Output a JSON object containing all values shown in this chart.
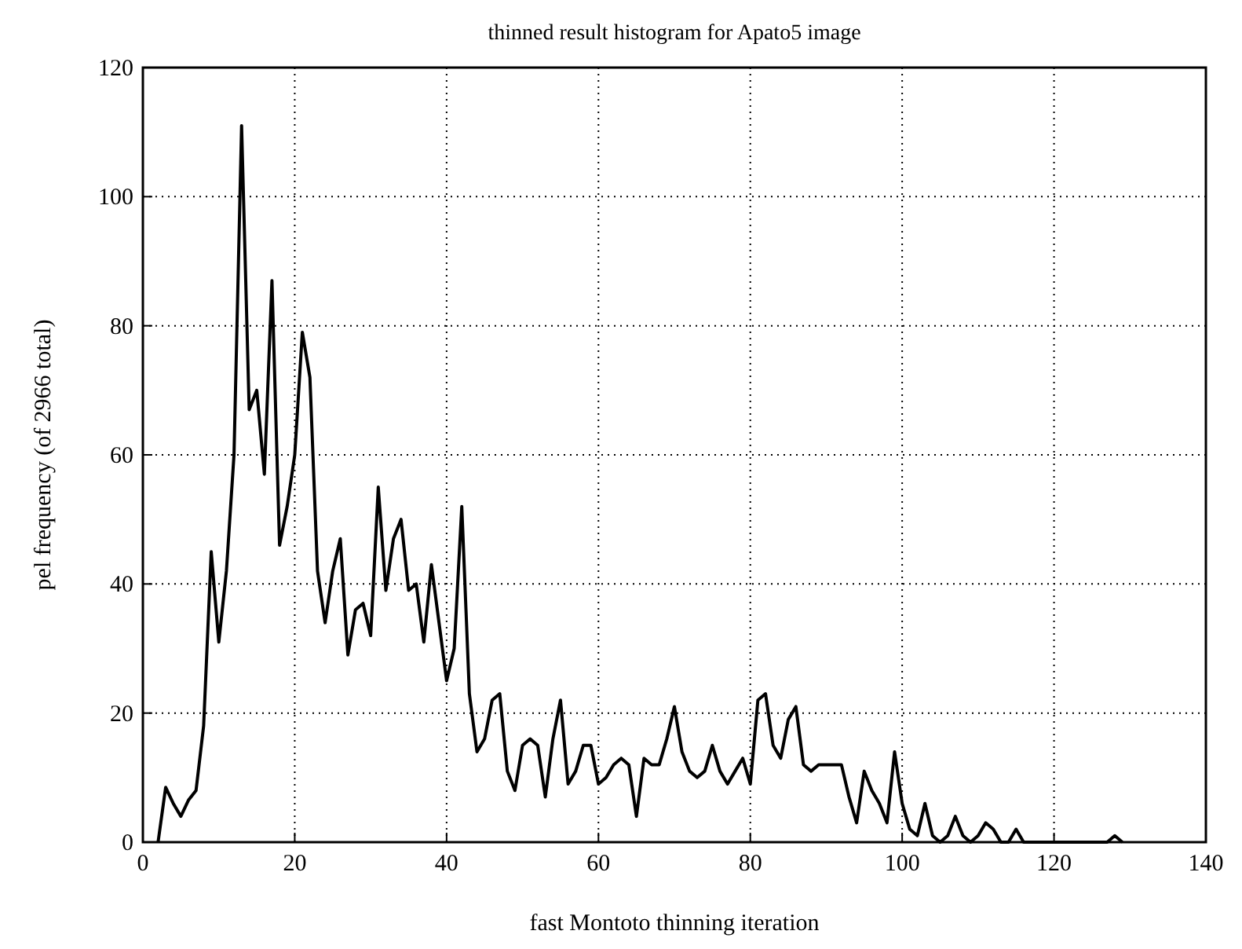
{
  "chart_data": {
    "type": "line",
    "title": "thinned result histogram for Apato5 image",
    "xlabel": "fast Montoto thinning iteration",
    "ylabel": "pel frequency (of 2966 total)",
    "x": [
      2,
      3,
      4,
      5,
      6,
      7,
      8,
      9,
      10,
      11,
      12,
      13,
      14,
      15,
      16,
      17,
      18,
      19,
      20,
      21,
      22,
      23,
      24,
      25,
      26,
      27,
      28,
      29,
      30,
      31,
      32,
      33,
      34,
      35,
      36,
      37,
      38,
      39,
      40,
      41,
      42,
      43,
      44,
      45,
      46,
      47,
      48,
      49,
      50,
      51,
      52,
      53,
      54,
      55,
      56,
      57,
      58,
      59,
      60,
      61,
      62,
      63,
      64,
      65,
      66,
      67,
      68,
      69,
      70,
      71,
      72,
      73,
      74,
      75,
      76,
      77,
      78,
      79,
      80,
      81,
      82,
      83,
      84,
      85,
      86,
      87,
      88,
      89,
      90,
      91,
      92,
      93,
      94,
      95,
      96,
      97,
      98,
      99,
      100,
      101,
      102,
      103,
      104,
      105,
      106,
      107,
      108,
      109,
      110,
      111,
      112,
      113,
      114,
      115,
      116,
      117,
      118,
      119,
      120,
      121,
      122,
      123,
      124,
      125,
      126,
      127,
      128,
      129
    ],
    "series": [
      {
        "color": "#000000",
        "values": [
          0,
          8.5,
          6,
          4,
          6.5,
          8,
          18,
          45,
          31,
          42,
          60,
          111,
          67,
          70,
          57,
          87,
          46,
          52,
          60,
          79,
          72,
          42,
          34,
          42,
          47,
          29,
          36,
          37,
          32,
          55,
          39,
          47,
          50,
          39,
          40,
          31,
          43,
          34,
          25,
          30,
          52,
          23,
          14,
          16,
          22,
          23,
          11,
          8,
          15,
          16,
          15,
          7,
          16,
          22,
          9,
          11,
          15,
          15,
          9,
          10,
          12,
          13,
          12,
          4,
          13,
          12,
          12,
          16,
          21,
          14,
          11,
          10,
          11,
          15,
          11,
          9,
          11,
          13,
          9,
          22,
          23,
          15,
          13,
          19,
          21,
          12,
          11,
          12,
          12,
          12,
          12,
          7,
          3,
          11,
          8,
          6,
          3,
          14,
          6,
          2,
          1,
          6,
          1,
          0,
          1,
          4,
          1,
          0,
          1,
          3,
          2,
          0,
          0,
          2,
          0,
          0,
          0,
          0,
          0,
          0,
          0,
          0,
          0,
          0,
          0,
          0,
          1,
          0
        ]
      }
    ],
    "xlim": [
      0,
      140
    ],
    "xticks": [
      0,
      20,
      40,
      60,
      80,
      100,
      120,
      140
    ],
    "ylim": [
      0,
      120
    ],
    "yticks": [
      0,
      20,
      40,
      60,
      80,
      100,
      120
    ],
    "grid": true,
    "line_style": "solid",
    "marker": "none"
  }
}
